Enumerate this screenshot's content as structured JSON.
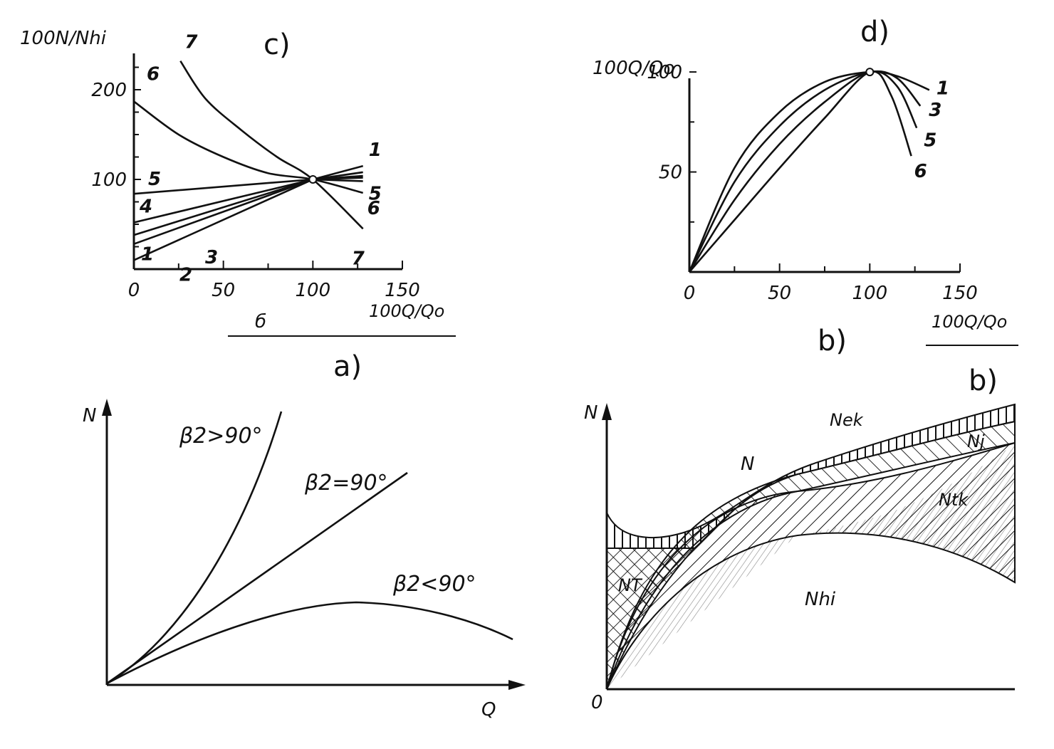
{
  "panels": {
    "c": {
      "label": "c)",
      "y_axis_label": "100N/Nhi",
      "x_axis_label": "100Q/Qo",
      "sub_label": "б"
    },
    "d": {
      "label": "d)",
      "y_axis_label": "100Q/Qo",
      "x_axis_label": "100Q/Qo",
      "sub_label": "b)"
    },
    "a": {
      "label": "a)",
      "y_axis_label": "N",
      "x_axis_label": "Q",
      "curve_labels": [
        "β2>90°",
        "β2=90°",
        "β2<90°"
      ]
    },
    "b": {
      "label": "b)",
      "y_axis_label": "N",
      "origin_label": "0",
      "region_labels": {
        "N": "N",
        "Nek": "Nek",
        "Nj": "Nj",
        "Nt": "NT",
        "Ntk": "Ntk",
        "Nhi": "Nhi"
      }
    }
  },
  "chart_data": [
    {
      "id": "c",
      "type": "line",
      "title": "c)",
      "xlabel": "100Q/Qo",
      "ylabel": "100N/Nhi",
      "xlim": [
        0,
        150
      ],
      "ylim": [
        0,
        250
      ],
      "x_ticks": [
        0,
        50,
        100,
        150
      ],
      "y_ticks": [
        100,
        200
      ],
      "series": [
        {
          "name": "1",
          "x": [
            0,
            100,
            128
          ],
          "y": [
            10,
            100,
            115
          ]
        },
        {
          "name": "2",
          "x": [
            0,
            100,
            128
          ],
          "y": [
            28,
            100,
            108
          ]
        },
        {
          "name": "3",
          "x": [
            0,
            100,
            128
          ],
          "y": [
            38,
            100,
            104
          ]
        },
        {
          "name": "4",
          "x": [
            0,
            100,
            128
          ],
          "y": [
            52,
            100,
            102
          ]
        },
        {
          "name": "5",
          "x": [
            0,
            100,
            128
          ],
          "y": [
            84,
            100,
            98
          ]
        },
        {
          "name": "6",
          "x": [
            0,
            25,
            50,
            75,
            100,
            128
          ],
          "y": [
            187,
            150,
            125,
            107,
            100,
            85
          ]
        },
        {
          "name": "7",
          "x": [
            26,
            40,
            60,
            80,
            100,
            128
          ],
          "y": [
            232,
            190,
            155,
            125,
            100,
            45
          ]
        }
      ]
    },
    {
      "id": "d",
      "type": "line",
      "title": "d)",
      "xlabel": "100Q/Qo",
      "ylabel": "100Q/Qo",
      "xlim": [
        0,
        150
      ],
      "ylim": [
        0,
        110
      ],
      "x_ticks": [
        0,
        50,
        100,
        150
      ],
      "y_ticks": [
        50,
        100
      ],
      "series": [
        {
          "name": "1",
          "x": [
            0,
            25,
            50,
            75,
            100,
            115,
            133
          ],
          "y": [
            0,
            52,
            80,
            95,
            100,
            98,
            91
          ]
        },
        {
          "name": "3",
          "x": [
            0,
            25,
            50,
            75,
            100,
            115,
            128
          ],
          "y": [
            0,
            45,
            73,
            91,
            100,
            97,
            83
          ]
        },
        {
          "name": "5",
          "x": [
            0,
            25,
            50,
            75,
            100,
            115,
            126
          ],
          "y": [
            0,
            36,
            64,
            85,
            100,
            93,
            72
          ]
        },
        {
          "name": "6",
          "x": [
            0,
            25,
            50,
            75,
            100,
            112,
            123
          ],
          "y": [
            0,
            26,
            52,
            77,
            100,
            88,
            58
          ]
        }
      ]
    },
    {
      "id": "a",
      "type": "line",
      "title": "a)",
      "xlabel": "Q",
      "ylabel": "N",
      "series": [
        {
          "name": "β2>90°"
        },
        {
          "name": "β2=90°"
        },
        {
          "name": "β2<90°"
        }
      ]
    },
    {
      "id": "b",
      "type": "area",
      "title": "b)",
      "xlabel": "",
      "ylabel": "N",
      "series": [
        {
          "name": "N"
        },
        {
          "name": "Nek"
        },
        {
          "name": "Nj"
        },
        {
          "name": "Ntk"
        },
        {
          "name": "NT"
        },
        {
          "name": "Nhi"
        }
      ]
    }
  ]
}
